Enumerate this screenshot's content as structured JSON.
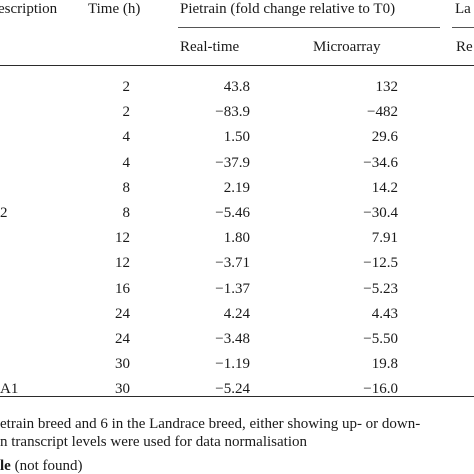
{
  "header": {
    "description": "escription",
    "time": "Time (h)",
    "pietrain": "Pietrain (fold change relative to T0)",
    "landrace": "La",
    "realtime": "Real-time",
    "microarray": "Microarray",
    "landrace_sub": "Re"
  },
  "rows": [
    {
      "desc": "",
      "time": "2",
      "realtime": "43.8",
      "microarray": "132"
    },
    {
      "desc": "",
      "time": "2",
      "realtime": "−83.9",
      "microarray": "−482"
    },
    {
      "desc": "",
      "time": "4",
      "realtime": "1.50",
      "microarray": "29.6"
    },
    {
      "desc": "",
      "time": "4",
      "realtime": "−37.9",
      "microarray": "−34.6"
    },
    {
      "desc": "",
      "time": "8",
      "realtime": "2.19",
      "microarray": "14.2"
    },
    {
      "desc": "2",
      "time": "8",
      "realtime": "−5.46",
      "microarray": "−30.4"
    },
    {
      "desc": "",
      "time": "12",
      "realtime": "1.80",
      "microarray": "7.91"
    },
    {
      "desc": "",
      "time": "12",
      "realtime": "−3.71",
      "microarray": "−12.5"
    },
    {
      "desc": "",
      "time": "16",
      "realtime": "−1.37",
      "microarray": "−5.23"
    },
    {
      "desc": "",
      "time": "24",
      "realtime": "4.24",
      "microarray": "4.43"
    },
    {
      "desc": "",
      "time": "24",
      "realtime": "−3.48",
      "microarray": "−5.50"
    },
    {
      "desc": "",
      "time": "30",
      "realtime": "−1.19",
      "microarray": "19.8"
    },
    {
      "desc": "A1",
      "time": "30",
      "realtime": "−5.24",
      "microarray": "−16.0"
    }
  ],
  "footnotes": {
    "line1": "etrain breed and 6 in the Landrace breed, either showing up- or down-",
    "line2": "n transcript levels were used for data normalisation",
    "line3_bold": "le",
    "line3_rest": " (not found)"
  }
}
